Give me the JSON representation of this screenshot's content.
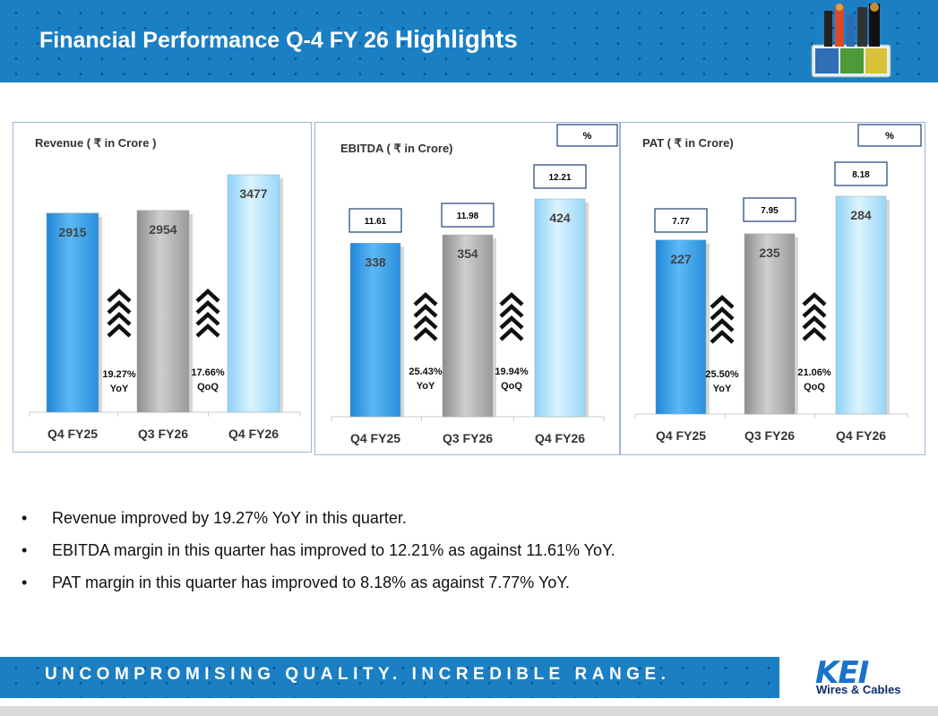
{
  "header": {
    "title_main": "Financial Performance Q-4 FY 26",
    "title_tail": "Highlights",
    "header_color": "#1b7fc4"
  },
  "chart_data": [
    {
      "type": "bar",
      "title": "Revenue  ( ₹ in Crore )",
      "categories": [
        "Q4 FY25",
        "Q3 FY26",
        "Q4 FY26"
      ],
      "values": [
        2915,
        2954,
        3477
      ],
      "value_labels": [
        "2915",
        "2954",
        "3477"
      ],
      "bar_colors": [
        "#3fa6ef",
        "#b4b4b4",
        "#b5e3fb"
      ],
      "growth": [
        {
          "value": "19.27%",
          "label": "YoY"
        },
        {
          "value": "17.66%",
          "label": "QoQ"
        }
      ]
    },
    {
      "type": "bar",
      "title": "EBITDA ( ₹ in Crore)",
      "categories": [
        "Q4 FY25",
        "Q3 FY26",
        "Q4 FY26"
      ],
      "values": [
        338,
        354,
        424
      ],
      "value_labels": [
        "338",
        "354",
        "424"
      ],
      "bar_colors": [
        "#3fa6ef",
        "#b4b4b4",
        "#b5e3fb"
      ],
      "margin_header": "%",
      "margins": [
        "11.61",
        "11.98",
        "12.21"
      ],
      "growth": [
        {
          "value": "25.43%",
          "label": "YoY"
        },
        {
          "value": "19.94%",
          "label": "QoQ"
        }
      ]
    },
    {
      "type": "bar",
      "title": "PAT ( ₹ in Crore)",
      "categories": [
        "Q4 FY25",
        "Q3 FY26",
        "Q4 FY26"
      ],
      "values": [
        227,
        235,
        284
      ],
      "value_labels": [
        "227",
        "235",
        "284"
      ],
      "bar_colors": [
        "#3fa6ef",
        "#b4b4b4",
        "#b5e3fb"
      ],
      "margin_header": "%",
      "margins": [
        "7.77",
        "7.95",
        "8.18"
      ],
      "growth": [
        {
          "value": "25.50%",
          "label": "YoY"
        },
        {
          "value": "21.06%",
          "label": "QoQ"
        }
      ]
    }
  ],
  "bullets": [
    {
      "mark": "•",
      "text": "Revenue improved by 19.27% YoY in this quarter."
    },
    {
      "mark": "•",
      "text": "EBITDA margin in this quarter has improved to 12.21% as against 11.61% YoY."
    },
    {
      "mark": "•",
      "text": "PAT margin in this quarter has improved to 8.18% as against 7.77% YoY."
    }
  ],
  "footer": {
    "tagline": "UNCOMPROMISING QUALITY. INCREDIBLE RANGE.",
    "brand_name": "KEI",
    "brand_sub": "Wires & Cables"
  }
}
